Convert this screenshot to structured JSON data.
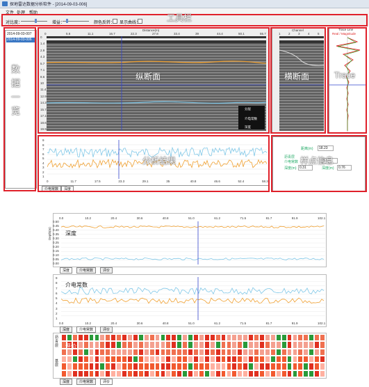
{
  "window": {
    "title": "探地雷达数据分析软件 - [2014-09-03-006]"
  },
  "menu": [
    "文件",
    "处理",
    "帮助"
  ],
  "toolbar": {
    "contrast_label": "对比度：",
    "gain_label": "增益：",
    "color_map_label": "颜色反转：",
    "show_curve_label": "显示曲线：",
    "annotation": "工具栏"
  },
  "data_list": {
    "items": [
      "2014-09-03-007",
      "2014-09-03-006"
    ],
    "selected_index": 1,
    "annotation": "数据一览"
  },
  "longitudinal": {
    "annotation": "纵断面",
    "axis_title": "Distance(m)",
    "x_ticks": [
      "0",
      "5.6",
      "11.1",
      "16.7",
      "22.3",
      "27.8",
      "33.4",
      "39",
      "44.4",
      "50.1",
      "55.7"
    ],
    "y_ticks": [
      "0",
      "1.4",
      "2.9",
      "4.3",
      "5.7",
      "7.1",
      "8.6",
      "10",
      "11.4",
      "12.9",
      "14.3",
      "15.7",
      "17.1",
      "18.6",
      "19.9"
    ],
    "legend": [
      "分层",
      "介电常数",
      "深度"
    ]
  },
  "cross_section": {
    "annotation": "横断面",
    "axis_title": "Channel",
    "x_ticks": [
      "1",
      "2",
      "3",
      "4",
      "5"
    ]
  },
  "trace": {
    "annotation": "Trace",
    "axis_title": "Trace Line",
    "legend": "Real / Magnitude"
  },
  "analysis": {
    "annotation": "分析结果",
    "x_ticks": [
      "0",
      "11.7",
      "17.5",
      "23.3",
      "29.1",
      "35",
      "40.8",
      "46.6",
      "52.4",
      "58.3"
    ],
    "y_ticks": [
      "9",
      "8",
      "7",
      "6",
      "5",
      "4",
      "3",
      "2",
      "1"
    ],
    "tabs": [
      "介电常数",
      "深度"
    ]
  },
  "sample_point": {
    "annotation": "样点信息",
    "distance_label": "距离(m)",
    "distance_value": "18.23",
    "layer_label": "沥青层",
    "dielectric_label": "介电常数",
    "dielectric_value": "5.0",
    "depth_label": "深度(m)",
    "depth_value": "0.31",
    "depth2_label": "深度(m)",
    "depth2_value": "0.76"
  },
  "depth_chart": {
    "annotation": "深度",
    "ylabel": "Depth(m)",
    "x_ticks": [
      "0.0",
      "10.2",
      "20.4",
      "30.6",
      "40.8",
      "51.0",
      "61.2",
      "71.5",
      "81.7",
      "91.9",
      "102.1"
    ],
    "y_ticks": [
      "0.50",
      "0.45",
      "0.40",
      "0.35",
      "0.30",
      "0.25",
      "0.20",
      "0.15",
      "0.10",
      "0.05",
      "0.00"
    ],
    "tabs": [
      "深度",
      "介电常数",
      "评价"
    ]
  },
  "dielectric_chart": {
    "annotation": "介电常数",
    "x_ticks": [
      "0.0",
      "10.2",
      "20.4",
      "30.6",
      "40.8",
      "51.0",
      "61.2",
      "71.5",
      "81.7",
      "91.9",
      "102.1"
    ],
    "y_ticks": [
      "9",
      "8",
      "7",
      "6",
      "5",
      "4",
      "3",
      "2",
      "1"
    ],
    "tabs": [
      "深度",
      "介电常数",
      "评价"
    ]
  },
  "evaluation": {
    "annotation": "评价",
    "row_labels": [
      "沥青层",
      "基层"
    ],
    "tabs": [
      "深度",
      "介电常数",
      "评价"
    ]
  },
  "colors": {
    "red": "#e0202a",
    "blue_line": "#3344cc",
    "orange": "#f0a030",
    "cyan": "#80c8e8"
  }
}
